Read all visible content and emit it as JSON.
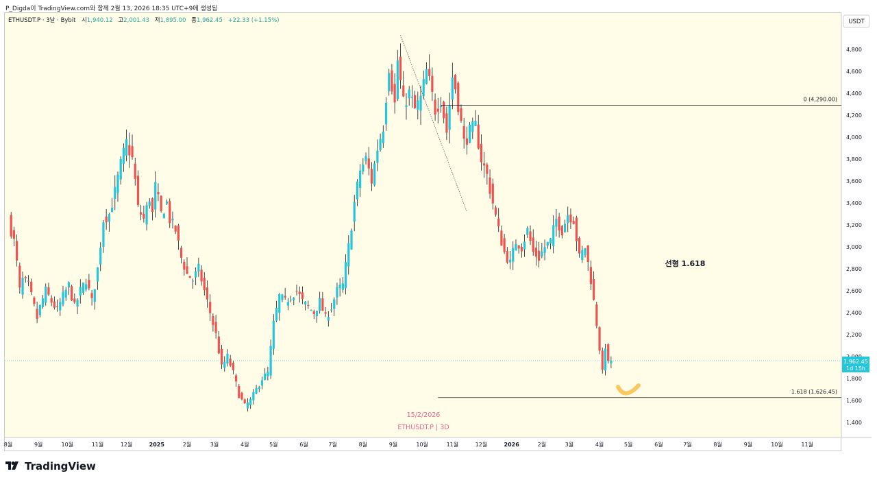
{
  "header": {
    "snapshot_line": "P_Digda이 TradingView.com와 함께 2월 13, 2026 18:35 UTC+9에 생성됨"
  },
  "legend": {
    "symbol": "ETHUSDT.P · 3날 · Bybit",
    "open_label": "시",
    "open_value": "1,940.12",
    "high_label": "고",
    "high_value": "2,001.43",
    "low_label": "저",
    "low_value": "1,895.00",
    "close_label": "종",
    "close_value": "1,962.45",
    "change": "+22.33 (+1.15%)"
  },
  "currency_badge": "USDT",
  "colors": {
    "up": "#26c6da",
    "down": "#ef5350",
    "background": "#fffde8",
    "price_label": "#26c6da",
    "watermark": "#f06292",
    "smile": "#f9c860"
  },
  "price_label": {
    "price": "1,962.45",
    "countdown": "1d 15h"
  },
  "watermark": {
    "date": "15/2/2026",
    "symbol": "ETHUSDT.P | 3D"
  },
  "footer": {
    "brand": "TradingView",
    "logo_icon": "tradingview-logo-icon"
  },
  "chart_data": {
    "type": "candlestick",
    "title": "ETHUSDT.P · 3D · Bybit",
    "ylim": [
      1250,
      5000
    ],
    "y_ticks": [
      1400,
      1600,
      1800,
      2000,
      2200,
      2400,
      2600,
      2800,
      3000,
      3200,
      3400,
      3600,
      3800,
      4000,
      4200,
      4400,
      4600,
      4800
    ],
    "y_tick_labels": [
      "1,400",
      "1,600",
      "1,800",
      "2,000",
      "2,200",
      "2,400",
      "2,600",
      "2,800",
      "3,000",
      "3,200",
      "3,400",
      "3,600",
      "3,800",
      "4,000",
      "4,200",
      "4,400",
      "4,600",
      "4,800"
    ],
    "x_ticks": [
      {
        "label": "8월",
        "t": 0
      },
      {
        "label": "9월",
        "t": 10.5
      },
      {
        "label": "10월",
        "t": 20.5
      },
      {
        "label": "11월",
        "t": 31
      },
      {
        "label": "12월",
        "t": 41
      },
      {
        "label": "2025",
        "t": 51.5
      },
      {
        "label": "2월",
        "t": 62
      },
      {
        "label": "3월",
        "t": 71.5
      },
      {
        "label": "4월",
        "t": 82
      },
      {
        "label": "5월",
        "t": 92
      },
      {
        "label": "6월",
        "t": 102.5
      },
      {
        "label": "7월",
        "t": 112.5
      },
      {
        "label": "8월",
        "t": 123
      },
      {
        "label": "9월",
        "t": 133.5
      },
      {
        "label": "10월",
        "t": 143.5
      },
      {
        "label": "11월",
        "t": 154
      },
      {
        "label": "12월",
        "t": 164
      },
      {
        "label": "2026",
        "t": 174.5
      },
      {
        "label": "2월",
        "t": 185
      },
      {
        "label": "3월",
        "t": 194.5
      },
      {
        "label": "4월",
        "t": 205
      },
      {
        "label": "5월",
        "t": 215
      },
      {
        "label": "6월",
        "t": 225.5
      },
      {
        "label": "7월",
        "t": 235.5
      },
      {
        "label": "8월",
        "t": 246
      },
      {
        "label": "9월",
        "t": 256.5
      },
      {
        "label": "10월",
        "t": 266.5
      },
      {
        "label": "11월",
        "t": 277
      }
    ],
    "anchors": [
      [
        0,
        3250
      ],
      [
        2,
        3050
      ],
      [
        3,
        2850
      ],
      [
        4,
        2600
      ],
      [
        5,
        2700
      ],
      [
        7,
        2650
      ],
      [
        8,
        2550
      ],
      [
        10,
        2350
      ],
      [
        11,
        2450
      ],
      [
        13,
        2600
      ],
      [
        15,
        2500
      ],
      [
        17,
        2420
      ],
      [
        19,
        2550
      ],
      [
        21,
        2650
      ],
      [
        23,
        2450
      ],
      [
        25,
        2600
      ],
      [
        27,
        2700
      ],
      [
        29,
        2500
      ],
      [
        31,
        2800
      ],
      [
        33,
        3250
      ],
      [
        35,
        3300
      ],
      [
        37,
        3500
      ],
      [
        39,
        3750
      ],
      [
        40,
        3850
      ],
      [
        41,
        3950
      ],
      [
        43,
        3800
      ],
      [
        44,
        3600
      ],
      [
        45,
        3350
      ],
      [
        47,
        3250
      ],
      [
        49,
        3450
      ],
      [
        50,
        3300
      ],
      [
        51,
        3550
      ],
      [
        53,
        3300
      ],
      [
        55,
        3400
      ],
      [
        56,
        3250
      ],
      [
        58,
        3150
      ],
      [
        60,
        2900
      ],
      [
        62,
        2750
      ],
      [
        64,
        2700
      ],
      [
        66,
        2800
      ],
      [
        68,
        2600
      ],
      [
        70,
        2400
      ],
      [
        72,
        2200
      ],
      [
        74,
        1900
      ],
      [
        76,
        2000
      ],
      [
        78,
        1850
      ],
      [
        80,
        1650
      ],
      [
        82,
        1550
      ],
      [
        84,
        1600
      ],
      [
        86,
        1700
      ],
      [
        88,
        1800
      ],
      [
        90,
        1850
      ],
      [
        92,
        2300
      ],
      [
        94,
        2550
      ],
      [
        96,
        2500
      ],
      [
        98,
        2550
      ],
      [
        100,
        2600
      ],
      [
        102,
        2500
      ],
      [
        104,
        2450
      ],
      [
        106,
        2400
      ],
      [
        108,
        2500
      ],
      [
        110,
        2350
      ],
      [
        112,
        2450
      ],
      [
        114,
        2600
      ],
      [
        116,
        2650
      ],
      [
        118,
        3000
      ],
      [
        120,
        3400
      ],
      [
        122,
        3700
      ],
      [
        124,
        3800
      ],
      [
        126,
        3600
      ],
      [
        128,
        3900
      ],
      [
        130,
        4100
      ],
      [
        132,
        4650
      ],
      [
        134,
        4300
      ],
      [
        135,
        4700
      ],
      [
        137,
        4300
      ],
      [
        139,
        4400
      ],
      [
        141,
        4250
      ],
      [
        143,
        4350
      ],
      [
        145,
        4600
      ],
      [
        146,
        4500
      ],
      [
        148,
        4250
      ],
      [
        150,
        4350
      ],
      [
        152,
        4050
      ],
      [
        154,
        4550
      ],
      [
        155,
        4450
      ],
      [
        156,
        4300
      ],
      [
        158,
        3950
      ],
      [
        160,
        4050
      ],
      [
        162,
        4100
      ],
      [
        164,
        3800
      ],
      [
        166,
        3650
      ],
      [
        168,
        3400
      ],
      [
        170,
        3150
      ],
      [
        172,
        2950
      ],
      [
        174,
        2850
      ],
      [
        176,
        3050
      ],
      [
        178,
        3000
      ],
      [
        180,
        3150
      ],
      [
        182,
        2950
      ],
      [
        184,
        2900
      ],
      [
        186,
        3000
      ],
      [
        188,
        3050
      ],
      [
        190,
        3250
      ],
      [
        192,
        3150
      ],
      [
        194,
        3300
      ],
      [
        196,
        3250
      ],
      [
        198,
        2900
      ],
      [
        200,
        3000
      ],
      [
        202,
        2700
      ],
      [
        204,
        2300
      ],
      [
        206,
        1850
      ],
      [
        207,
        2100
      ],
      [
        208,
        1930
      ],
      [
        209,
        1962.45
      ]
    ],
    "annotations": {
      "fib_zero": {
        "label": "0 (4,290.00)",
        "price": 4290
      },
      "fib_1618": {
        "label": "1.618 (1,626.45)",
        "price": 1626.45
      },
      "linear_text": "선형 1.618",
      "trend_line": {
        "from": [
          136,
          4930
        ],
        "to": [
          159,
          3320
        ]
      }
    }
  }
}
